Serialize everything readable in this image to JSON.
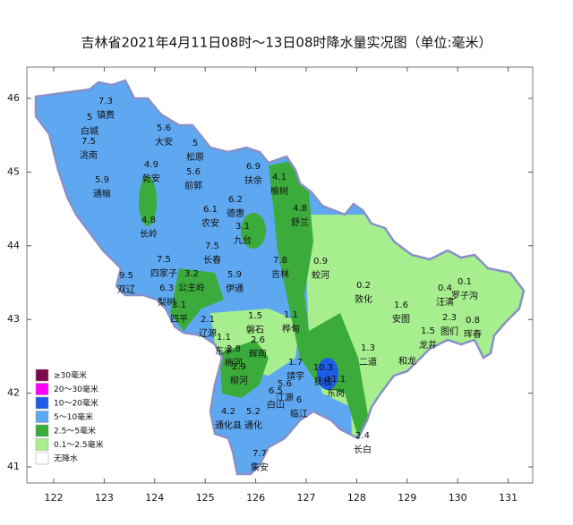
{
  "title": "吉林省2021年4月11日08时～13日08时降水量实况图（单位:毫米）",
  "axes": {
    "lon_ticks": [
      122,
      123,
      124,
      125,
      126,
      127,
      128,
      129,
      130,
      131
    ],
    "lat_ticks": [
      41,
      42,
      43,
      44,
      45,
      46
    ]
  },
  "stations": [
    {
      "name": "镇赉",
      "value": 7.3
    },
    {
      "name": "白城",
      "value": 5
    },
    {
      "name": "洮南",
      "value": 7.5
    },
    {
      "name": "通榆",
      "value": 5.9
    },
    {
      "name": "大安",
      "value": 5.6
    },
    {
      "name": "松原",
      "value": 5
    },
    {
      "name": "乾安",
      "value": 4.9
    },
    {
      "name": "前郭",
      "value": 5.6
    },
    {
      "name": "扶余",
      "value": 6.9
    },
    {
      "name": "榆树",
      "value": 4.1
    },
    {
      "name": "德惠",
      "value": 6.2
    },
    {
      "name": "农安",
      "value": 6.1
    },
    {
      "name": "舒兰",
      "value": 4.8
    },
    {
      "name": "长岭",
      "value": 4.8
    },
    {
      "name": "九台",
      "value": 3.1
    },
    {
      "name": "长春",
      "value": 7.5
    },
    {
      "name": "吉林",
      "value": 7.8
    },
    {
      "name": "蛟河",
      "value": 0.9
    },
    {
      "name": "敦化",
      "value": 0.2
    },
    {
      "name": "双辽",
      "value": 9.5
    },
    {
      "name": "四家子",
      "value": 7.5
    },
    {
      "name": "公主岭",
      "value": 3.2
    },
    {
      "name": "伊通",
      "value": 5.9
    },
    {
      "name": "梨树",
      "value": 6.3
    },
    {
      "name": "四平",
      "value": 3.1
    },
    {
      "name": "磐石",
      "value": 1.5
    },
    {
      "name": "桦甸",
      "value": 1.1
    },
    {
      "name": "安图",
      "value": 1.6
    },
    {
      "name": "汪清",
      "value": 0.4
    },
    {
      "name": "罗子沟",
      "value": 0.1
    },
    {
      "name": "图们",
      "value": 2.3
    },
    {
      "name": "珲春",
      "value": 0.8
    },
    {
      "name": "龙井",
      "value": 1.5
    },
    {
      "name": "和龙"
    },
    {
      "name": "二道",
      "value": 1.3
    },
    {
      "name": "辽源",
      "value": 2.1
    },
    {
      "name": "东丰",
      "value": 1.1
    },
    {
      "name": "辉南",
      "value": 2.6
    },
    {
      "name": "梅河",
      "value": 2.8
    },
    {
      "name": "柳河",
      "value": 2.9
    },
    {
      "name": "靖宇",
      "value": 1.7
    },
    {
      "name": "抚松",
      "value": 10.3
    },
    {
      "name": "东岗",
      "value": 11.1
    },
    {
      "name": "白山",
      "value": 6.5
    },
    {
      "name": "江源",
      "value": 5.6
    },
    {
      "name": "临江",
      "value": 6
    },
    {
      "name": "通化县",
      "value": 4.2
    },
    {
      "name": "通化",
      "value": 5.2
    },
    {
      "name": "长白",
      "value": 2.4
    },
    {
      "name": "集安",
      "value": 7.7
    }
  ],
  "legend": [
    {
      "label": "≥30毫米",
      "color": "#7b0a4c"
    },
    {
      "label": "20～30毫米",
      "color": "#ff00ff"
    },
    {
      "label": "10～20毫米",
      "color": "#1e5be6"
    },
    {
      "label": "5～10毫米",
      "color": "#5ea8f2"
    },
    {
      "label": "2.5～5毫米",
      "color": "#3bab3b"
    },
    {
      "label": "0.1～2.5毫米",
      "color": "#a6ee8e"
    },
    {
      "label": "无降水",
      "color": "#ffffff"
    }
  ]
}
